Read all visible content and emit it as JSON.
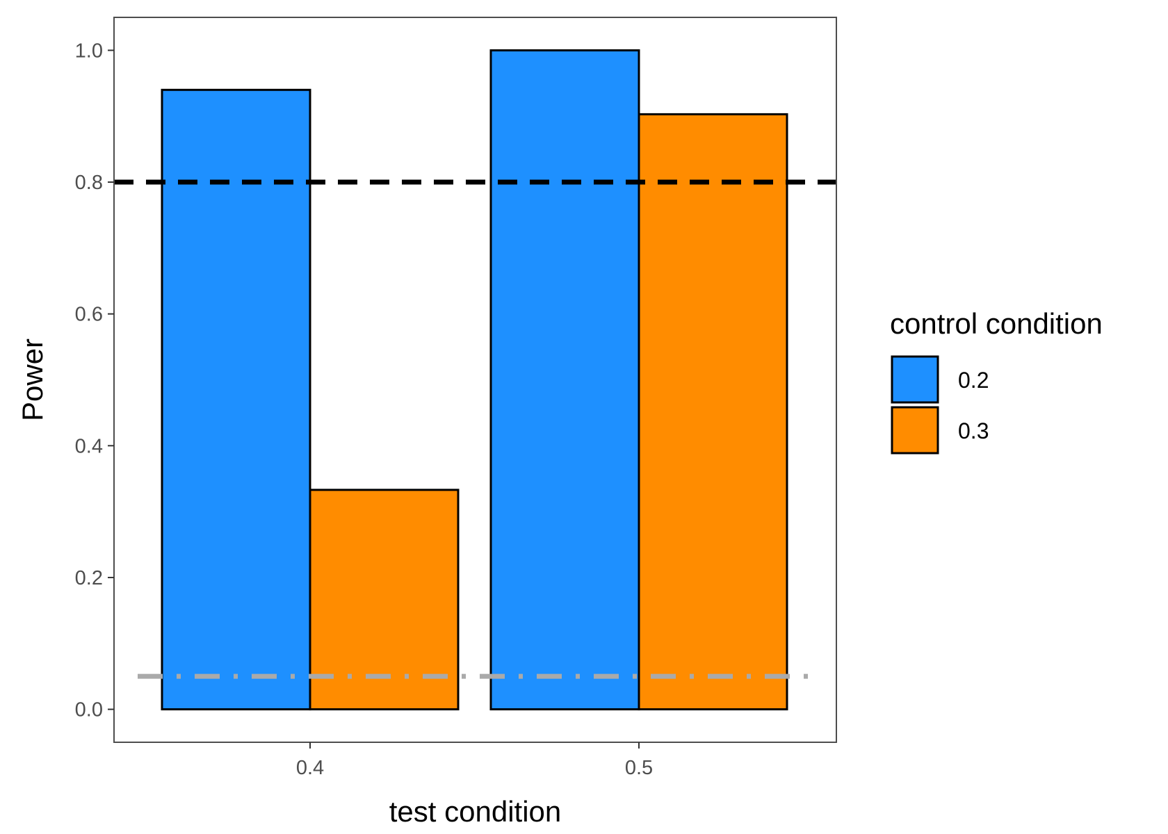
{
  "chart_data": {
    "type": "bar",
    "title": "",
    "xlabel": "test condition",
    "ylabel": "Power",
    "categories": [
      "0.4",
      "0.5"
    ],
    "series": [
      {
        "name": "0.2",
        "values": [
          0.94,
          1.0
        ],
        "color": "#1E90FF"
      },
      {
        "name": "0.3",
        "values": [
          0.333,
          0.903
        ],
        "color": "#FF8C00"
      }
    ],
    "ylim": [
      -0.05,
      1.05
    ],
    "yticks": [
      0.0,
      0.2,
      0.4,
      0.6,
      0.8,
      1.0
    ],
    "ytick_labels": [
      "0.0",
      "0.2",
      "0.4",
      "0.6",
      "0.8",
      "1.0"
    ],
    "reference_lines": [
      {
        "y": 0.8,
        "style": "dashed",
        "color": "#000000"
      },
      {
        "y": 0.05,
        "style": "dotdash",
        "color": "#AAAAAA"
      }
    ],
    "legend": {
      "title": "control condition",
      "position": "right"
    },
    "grid": false
  }
}
